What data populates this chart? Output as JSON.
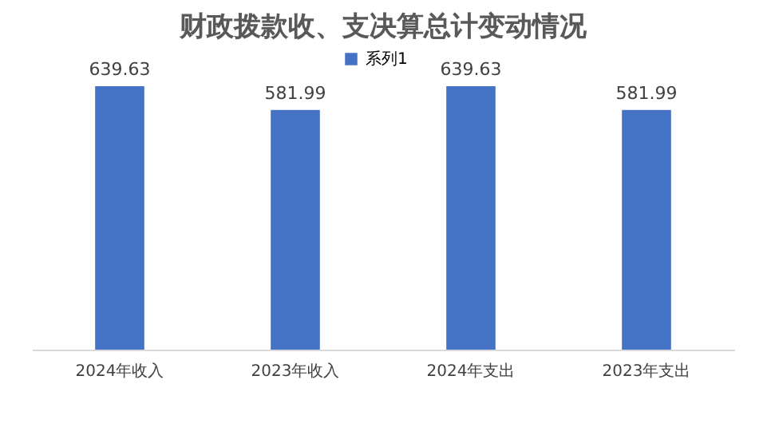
{
  "chart_data": {
    "type": "bar",
    "title": "财政拨款收、支决算总计变动情况",
    "categories": [
      "2024年收入",
      "2023年收入",
      "2024年支出",
      "2023年支出"
    ],
    "series": [
      {
        "name": "系列1",
        "color": "#4472c4",
        "values": [
          639.63,
          581.99,
          639.63,
          581.99
        ]
      }
    ],
    "tick_labels": "x",
    "grid": false,
    "legend": "top",
    "data_labels": true
  }
}
